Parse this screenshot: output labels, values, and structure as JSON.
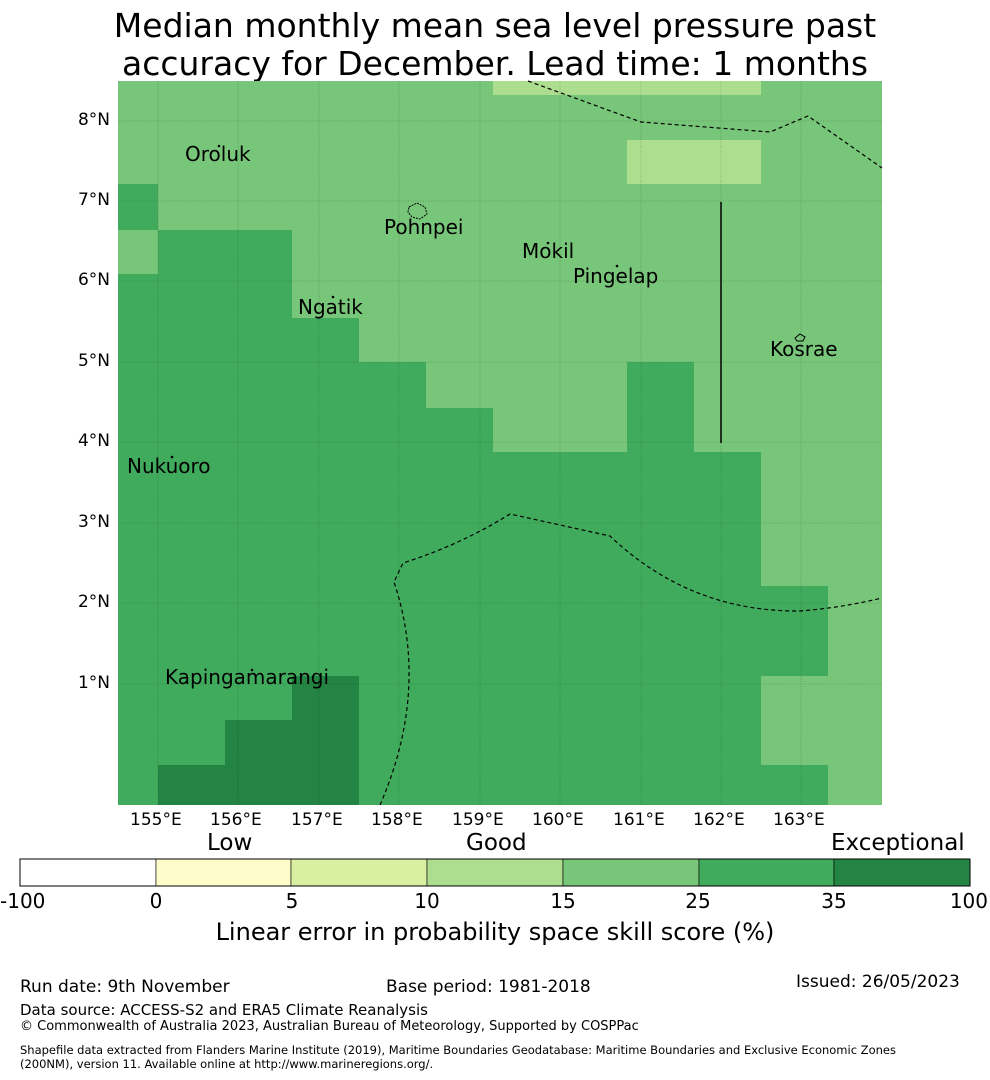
{
  "title_line1": "Median monthly mean sea level pressure past",
  "title_line2": "accuracy for December. Lead time: 1 months",
  "map": {
    "latitude_labels": [
      "8°N",
      "7°N",
      "6°N",
      "5°N",
      "4°N",
      "3°N",
      "2°N",
      "1°N"
    ],
    "longitude_labels": [
      "155°E",
      "156°E",
      "157°E",
      "158°E",
      "159°E",
      "160°E",
      "161°E",
      "162°E",
      "163°E"
    ],
    "places": [
      "Oroluk",
      "Pohnpei",
      "Mokil",
      "Pingelap",
      "Ngatik",
      "Kosrae",
      "Nukuoro",
      "Kapingamarangi"
    ]
  },
  "colorbar": {
    "category_labels": [
      "Low",
      "Good",
      "Exceptional"
    ],
    "ticks": [
      "-100",
      "0",
      "5",
      "10",
      "15",
      "25",
      "35",
      "100"
    ],
    "colors": [
      "#ffffff",
      "#fffccc",
      "#d9f0a3",
      "#addd8e",
      "#78c679",
      "#41ab5d",
      "#238443"
    ],
    "axis_label": "Linear error in probability space skill score (%)"
  },
  "footer": {
    "run_date": "Run date: 9th November",
    "base_period": "Base period: 1981-2018",
    "issued": "Issued: 26/05/2023",
    "data_source": "Data source: ACCESS-S2 and ERA5 Climate Reanalysis",
    "copyright": "© Commonwealth of Australia 2023, Australian Bureau of Meteorology, Supported by COSPPac",
    "shapefile_line1": "Shapefile data extracted from Flanders Marine Institute (2019), Maritime Boundaries Geodatabase: Maritime Boundaries and Exclusive Economic Zones",
    "shapefile_line2": "(200NM), version 11. Available online at http://www.marineregions.org/."
  }
}
